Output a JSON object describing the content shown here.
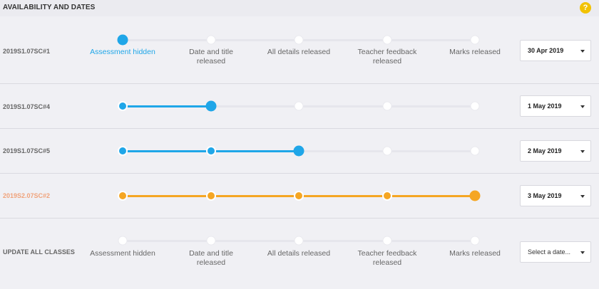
{
  "header": {
    "title": "AVAILABILITY AND DATES",
    "help_icon": "?"
  },
  "colors": {
    "blue": "#1fa6e8",
    "orange": "#f5a623",
    "warning_label": "#f0a27a"
  },
  "stages": [
    "Assessment hidden",
    "Date and title released",
    "All details released",
    "Teacher feedback released",
    "Marks released"
  ],
  "rows": [
    {
      "class_code": "2019S1.07SC#1",
      "current_stage": "Assessment hidden",
      "date": "30 Apr 2019"
    },
    {
      "class_code": "2019S1.07SC#4",
      "current_stage": "Date and title released",
      "date": "1 May 2019"
    },
    {
      "class_code": "2019S1.07SC#5",
      "current_stage": "All details released",
      "date": "2 May 2019"
    },
    {
      "class_code": "2019S2.07SC#2",
      "current_stage": "Marks released",
      "date": "3 May 2019"
    }
  ],
  "update_all": {
    "label": "UPDATE ALL CLASSES",
    "date_placeholder": "Select a date..."
  },
  "icons": {
    "help": "question-circle-icon",
    "dropdown": "caret-down-icon"
  }
}
